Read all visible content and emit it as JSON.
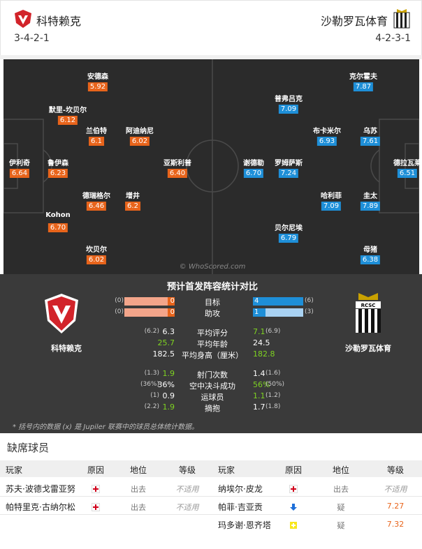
{
  "header": {
    "home": {
      "name": "科特赖克",
      "formation": "3-4-2-1"
    },
    "away": {
      "name": "沙勒罗瓦体育",
      "formation": "4-2-3-1"
    }
  },
  "pitch": {
    "watermark": "© WhoScored.com",
    "home_color": "#e8641b",
    "away_color": "#1e8fd8",
    "home_players": [
      {
        "name": "安德森",
        "rating": "5.92"
      },
      {
        "name": "默里-坎贝尔",
        "rating": "6.12"
      },
      {
        "name": "兰伯特",
        "rating": "6.1"
      },
      {
        "name": "阿迪纳尼",
        "rating": "6.02"
      },
      {
        "name": "伊利奇",
        "rating": "6.64"
      },
      {
        "name": "鲁伊森",
        "rating": "6.23"
      },
      {
        "name": "亚斯利普",
        "rating": "6.40"
      },
      {
        "name": "德瑞格尔",
        "rating": "6.46"
      },
      {
        "name": "增井",
        "rating": "6.2"
      },
      {
        "name": "Kohon",
        "rating": "6.70"
      },
      {
        "name": "坎贝尔",
        "rating": "6.02"
      }
    ],
    "away_players": [
      {
        "name": "克尔霍夫",
        "rating": "7.87"
      },
      {
        "name": "普弗吕克",
        "rating": "7.09"
      },
      {
        "name": "布卡米尔",
        "rating": "6.93"
      },
      {
        "name": "乌苏",
        "rating": "7.61"
      },
      {
        "name": "谢德勒",
        "rating": "6.70"
      },
      {
        "name": "罗姆萨斯",
        "rating": "7.24"
      },
      {
        "name": "德拉瓦莱",
        "rating": "6.51"
      },
      {
        "name": "哈利菲",
        "rating": "7.09"
      },
      {
        "name": "圭太",
        "rating": "7.89"
      },
      {
        "name": "贝尔尼埃",
        "rating": "6.79"
      },
      {
        "name": "母猪",
        "rating": "6.38"
      }
    ]
  },
  "comparison": {
    "title": "预计首发阵容统计对比",
    "bars": [
      {
        "label": "目标",
        "home_season": "(0)",
        "home": 0,
        "away": 4,
        "away_season": "(6)"
      },
      {
        "label": "助攻",
        "home_season": "(0)",
        "home": 0,
        "away": 1,
        "away_season": "(3)"
      }
    ],
    "rows": [
      {
        "label": "平均评分",
        "home_season": "(6.2)",
        "home": "6.3",
        "away": "7.1",
        "away_season": "(6.9)",
        "better": "away"
      },
      {
        "label": "平均年龄",
        "home": "25.7",
        "away": "24.5",
        "better": "home"
      },
      {
        "label": "平均身高（厘米）",
        "home": "182.5",
        "away": "182.8",
        "better": "away"
      },
      {
        "label": "射门次数",
        "home_season": "(1.3)",
        "home": "1.9",
        "away": "1.4",
        "away_season": "(1.6)",
        "better": "home"
      },
      {
        "label": "空中决斗成功",
        "home_season": "(36%)",
        "home": "36%",
        "away": "56%",
        "away_season": "(50%)",
        "better": "away"
      },
      {
        "label": "运球员",
        "home_season": "(1)",
        "home": "0.9",
        "away": "1.1",
        "away_season": "(1.2)",
        "better": "away"
      },
      {
        "label": "摘抱",
        "home_season": "(2.2)",
        "home": "1.9",
        "away": "1.7",
        "away_season": "(1.8)",
        "better": "home"
      }
    ],
    "note": "* 括号内的数据 (x) 是 Jupiler 联赛中的球员总体统计数据。"
  },
  "absent": {
    "title": "缺席球员",
    "columns": [
      "玩家",
      "原因",
      "地位",
      "等级",
      "玩家",
      "原因",
      "地位",
      "等级"
    ],
    "rows": [
      {
        "left": {
          "player": "苏夫·波德戈雷亚努",
          "icon": "red-cross",
          "status": "出去",
          "rating": "不适用"
        },
        "right": {
          "player": "纳埃尔·皮龙",
          "icon": "red-cross",
          "status": "出去",
          "rating": "不适用"
        }
      },
      {
        "left": {
          "player": "帕特里克·古纳尔松",
          "icon": "red-cross",
          "status": "出去",
          "rating": "不适用"
        },
        "right": {
          "player": "帕菲·吉亚贡",
          "icon": "blue-arrow",
          "status": "疑",
          "rating": "7.27"
        }
      },
      {
        "right": {
          "player": "玛多谢·恩齐塔",
          "icon": "yellow-card",
          "status": "疑",
          "rating": "7.32"
        }
      }
    ]
  }
}
